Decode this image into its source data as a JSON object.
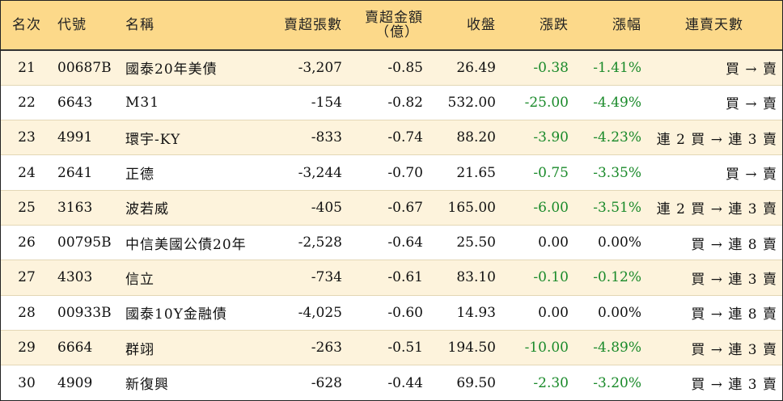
{
  "headers": {
    "rank": "名次",
    "code": "代號",
    "name": "名稱",
    "net_sell_shares": "賣超張數",
    "net_sell_amount_line1": "賣超金額",
    "net_sell_amount_line2": "（億）",
    "close": "收盤",
    "change": "漲跌",
    "change_pct": "漲幅",
    "streak": "連賣天數"
  },
  "colors": {
    "header_bg": "#fcd98a",
    "odd_row_bg": "#fdf3dc",
    "even_row_bg": "#ffffff",
    "negative_text": "#1a8a2a"
  },
  "rows": [
    {
      "rank": "21",
      "code": "00687B",
      "name": "國泰20年美債",
      "shares": "-3,207",
      "amount": "-0.85",
      "close": "26.49",
      "change": "-0.38",
      "pct": "-1.41%",
      "streak": "買 → 賣"
    },
    {
      "rank": "22",
      "code": "6643",
      "name": "M31",
      "shares": "-154",
      "amount": "-0.82",
      "close": "532.00",
      "change": "-25.00",
      "pct": "-4.49%",
      "streak": "買 → 賣"
    },
    {
      "rank": "23",
      "code": "4991",
      "name": "環宇-KY",
      "shares": "-833",
      "amount": "-0.74",
      "close": "88.20",
      "change": "-3.90",
      "pct": "-4.23%",
      "streak": "連 2 買 → 連 3 賣"
    },
    {
      "rank": "24",
      "code": "2641",
      "name": "正德",
      "shares": "-3,244",
      "amount": "-0.70",
      "close": "21.65",
      "change": "-0.75",
      "pct": "-3.35%",
      "streak": "買 → 賣"
    },
    {
      "rank": "25",
      "code": "3163",
      "name": "波若威",
      "shares": "-405",
      "amount": "-0.67",
      "close": "165.00",
      "change": "-6.00",
      "pct": "-3.51%",
      "streak": "連 2 買 → 連 3 賣"
    },
    {
      "rank": "26",
      "code": "00795B",
      "name": "中信美國公債20年",
      "shares": "-2,528",
      "amount": "-0.64",
      "close": "25.50",
      "change": "0.00",
      "pct": "0.00%",
      "streak": "買 → 連 8 賣"
    },
    {
      "rank": "27",
      "code": "4303",
      "name": "信立",
      "shares": "-734",
      "amount": "-0.61",
      "close": "83.10",
      "change": "-0.10",
      "pct": "-0.12%",
      "streak": "買 → 連 3 賣"
    },
    {
      "rank": "28",
      "code": "00933B",
      "name": "國泰10Y金融債",
      "shares": "-4,025",
      "amount": "-0.60",
      "close": "14.93",
      "change": "0.00",
      "pct": "0.00%",
      "streak": "買 → 連 8 賣"
    },
    {
      "rank": "29",
      "code": "6664",
      "name": "群翊",
      "shares": "-263",
      "amount": "-0.51",
      "close": "194.50",
      "change": "-10.00",
      "pct": "-4.89%",
      "streak": "買 → 連 3 賣"
    },
    {
      "rank": "30",
      "code": "4909",
      "name": "新復興",
      "shares": "-628",
      "amount": "-0.44",
      "close": "69.50",
      "change": "-2.30",
      "pct": "-3.20%",
      "streak": "買 → 連 3 賣"
    }
  ]
}
